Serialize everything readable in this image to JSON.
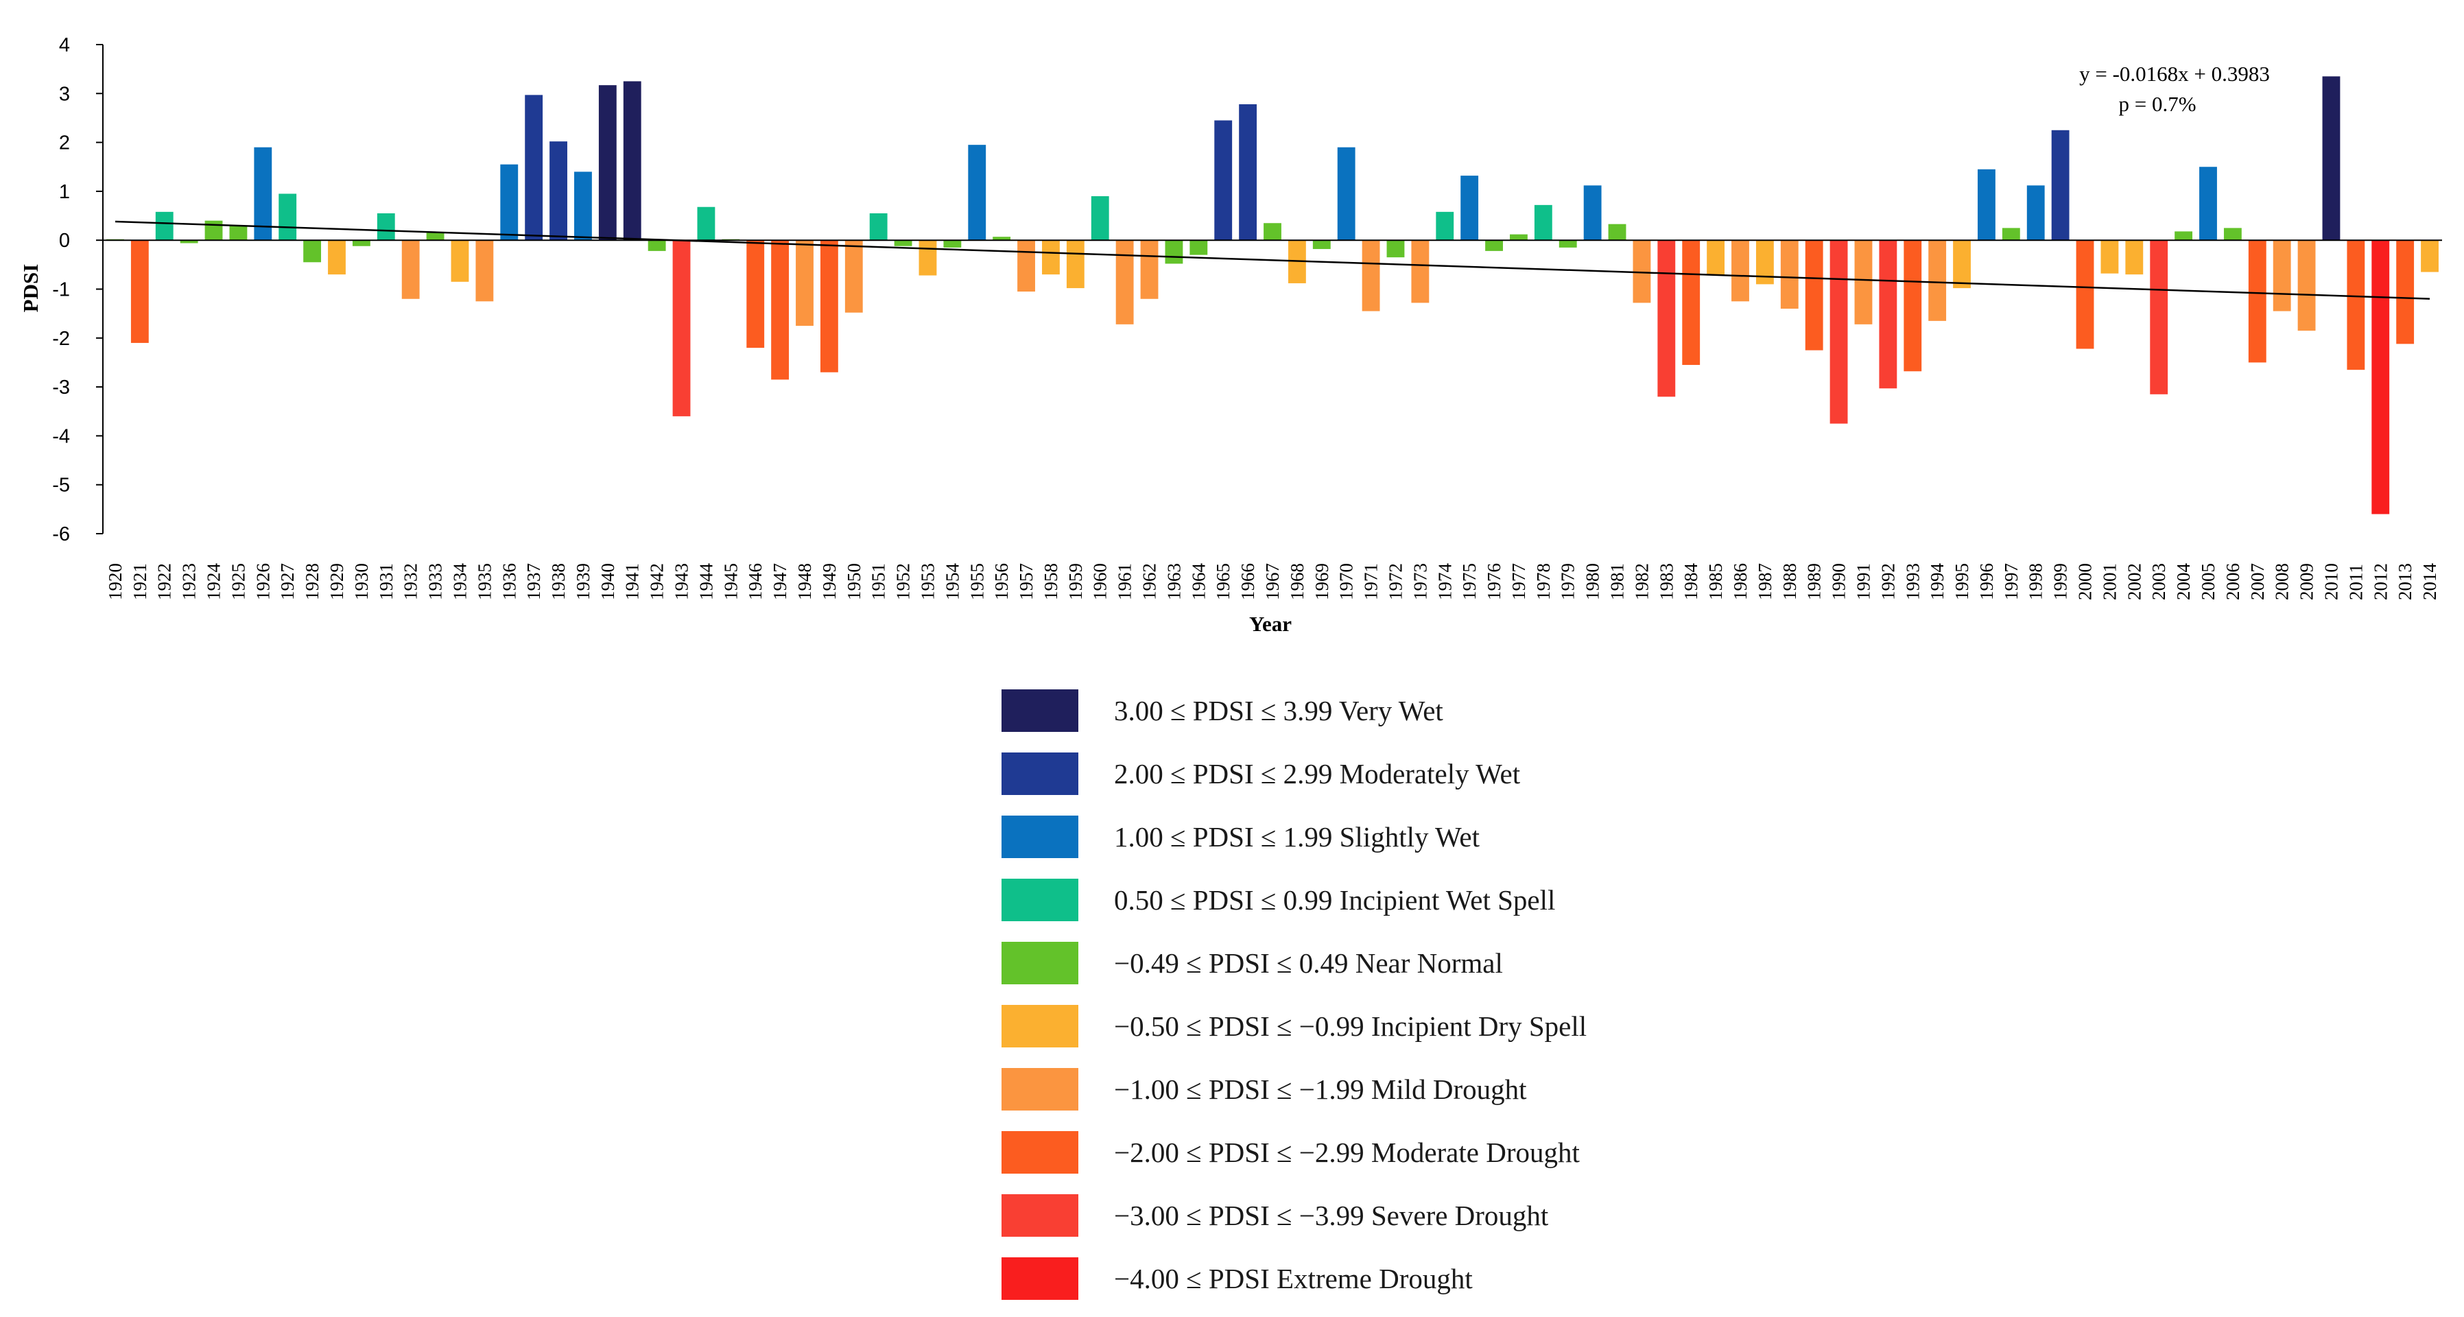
{
  "chart_data": {
    "type": "bar",
    "ylabel": "PDSI",
    "xlabel": "Year",
    "ylim": [
      -6,
      4
    ],
    "yticks": [
      -6,
      -5,
      -4,
      -3,
      -2,
      -1,
      0,
      1,
      2,
      3,
      4
    ],
    "grid": false,
    "categories": [
      "1920",
      "1921",
      "1922",
      "1923",
      "1924",
      "1925",
      "1926",
      "1927",
      "1928",
      "1929",
      "1930",
      "1931",
      "1932",
      "1933",
      "1934",
      "1935",
      "1936",
      "1937",
      "1938",
      "1939",
      "1940",
      "1941",
      "1942",
      "1943",
      "1944",
      "1945",
      "1946",
      "1947",
      "1948",
      "1949",
      "1950",
      "1951",
      "1952",
      "1953",
      "1954",
      "1955",
      "1956",
      "1957",
      "1958",
      "1959",
      "1960",
      "1961",
      "1962",
      "1963",
      "1964",
      "1965",
      "1966",
      "1967",
      "1968",
      "1969",
      "1970",
      "1971",
      "1972",
      "1973",
      "1974",
      "1975",
      "1976",
      "1977",
      "1978",
      "1979",
      "1980",
      "1981",
      "1982",
      "1983",
      "1984",
      "1985",
      "1986",
      "1987",
      "1988",
      "1989",
      "1990",
      "1991",
      "1992",
      "1993",
      "1994",
      "1995",
      "1996",
      "1997",
      "1998",
      "1999",
      "2000",
      "2001",
      "2002",
      "2003",
      "2004",
      "2005",
      "2006",
      "2007",
      "2008",
      "2009",
      "2010",
      "2011",
      "2012",
      "2013",
      "2014"
    ],
    "values": [
      0.02,
      -2.1,
      0.58,
      -0.06,
      0.4,
      0.3,
      1.9,
      0.95,
      -0.45,
      -0.7,
      -0.12,
      0.55,
      -1.2,
      0.15,
      -0.85,
      -1.25,
      1.55,
      2.97,
      2.02,
      1.4,
      3.17,
      3.25,
      -0.22,
      -3.6,
      0.68,
      0.02,
      -2.2,
      -2.85,
      -1.75,
      -2.7,
      -1.48,
      0.55,
      -0.12,
      -0.72,
      -0.15,
      1.95,
      0.07,
      -1.05,
      -0.7,
      -0.98,
      0.9,
      -1.72,
      -1.2,
      -0.48,
      -0.3,
      2.45,
      2.78,
      0.35,
      -0.88,
      -0.18,
      1.9,
      -1.45,
      -0.35,
      -1.28,
      0.58,
      1.32,
      -0.22,
      0.12,
      0.72,
      -0.15,
      1.12,
      0.33,
      -1.28,
      -3.2,
      -2.55,
      -0.72,
      -1.25,
      -0.9,
      -1.4,
      -2.25,
      -3.75,
      -1.72,
      -3.03,
      -2.68,
      -1.65,
      -0.98,
      1.45,
      0.25,
      1.12,
      2.25,
      -2.22,
      -0.68,
      -0.7,
      -3.15,
      0.18,
      1.5,
      0.25,
      -2.5,
      -1.45,
      -1.85,
      3.35,
      -2.65,
      -5.6,
      -2.12,
      -0.65
    ],
    "trendline": {
      "slope": -0.0168,
      "intercept": 0.3983
    },
    "annotations": [
      "y = -0.0168x + 0.3983",
      "p = 0.7%"
    ],
    "legend": [
      {
        "label": "3.00 ≤ PDSI ≤ 3.99 Very Wet",
        "color": "#1f1f5c"
      },
      {
        "label": "2.00 ≤ PDSI ≤ 2.99 Moderately Wet",
        "color": "#1f3a93"
      },
      {
        "label": "1.00 ≤ PDSI ≤ 1.99 Slightly Wet",
        "color": "#0a72bf"
      },
      {
        "label": "0.50 ≤ PDSI ≤ 0.99 Incipient Wet Spell",
        "color": "#0fbf8a"
      },
      {
        "label": "−0.49 ≤ PDSI ≤ 0.49 Near Normal",
        "color": "#63c22a"
      },
      {
        "label": "−0.50 ≤ PDSI ≤ −0.99 Incipient Dry Spell",
        "color": "#fbb030"
      },
      {
        "label": "−1.00 ≤ PDSI ≤ −1.99 Mild Drought",
        "color": "#fb9540"
      },
      {
        "label": "−2.00 ≤ PDSI ≤ −2.99 Moderate Drought",
        "color": "#fc5c20"
      },
      {
        "label": "−3.00 ≤ PDSI ≤ −3.99 Severe Drought",
        "color": "#f93f33"
      },
      {
        "label": "−4.00 ≤ PDSI Extreme Drought",
        "color": "#f91e1e"
      }
    ]
  }
}
